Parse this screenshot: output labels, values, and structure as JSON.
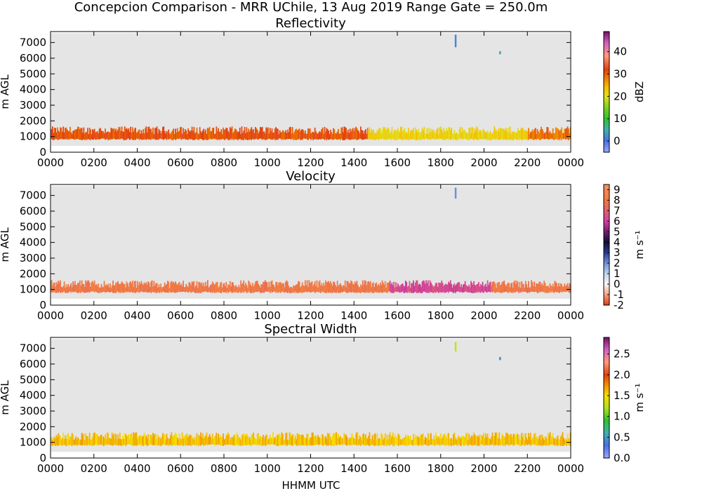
{
  "figure": {
    "suptitle": "Concepcion Comparison - MRR UChile, 13 Aug 2019 Range Gate = 250.0m",
    "xlabel": "HHMM UTC"
  },
  "colors": {
    "plot_background": "#e5e5e5",
    "reflectivity_band_main": "#e04a0a",
    "reflectivity_band_late": "#f2e600",
    "velocity_band": "#f28a3c",
    "velocity_band_late": "#e0508c",
    "width_band_top": "#f5e000",
    "width_band_bottom": "#e06010",
    "accent_blue": "#4a6fe0",
    "accent_green": "#22aa22"
  },
  "chart_data": [
    {
      "type": "heatmap",
      "title": "Reflectivity",
      "xlabel": "",
      "ylabel": "m AGL",
      "xlim": [
        0,
        24
      ],
      "ylim": [
        0,
        7700
      ],
      "x_tick_labels": [
        "0000",
        "0200",
        "0400",
        "0600",
        "0800",
        "1000",
        "1200",
        "1400",
        "1600",
        "1800",
        "2000",
        "2200",
        "0000"
      ],
      "y_tick_labels": [
        "0",
        "1000",
        "2000",
        "3000",
        "4000",
        "5000",
        "6000",
        "7000"
      ],
      "colorbar": {
        "label": "dBZ",
        "range": [
          -5,
          49
        ],
        "ticks": [
          "0",
          "10",
          "20",
          "30",
          "40"
        ],
        "tick_values": [
          0,
          10,
          20,
          30,
          40
        ],
        "stops": [
          {
            "v": -5,
            "c": "#9aa8ff"
          },
          {
            "v": 0,
            "c": "#4a6fe0"
          },
          {
            "v": 5,
            "c": "#40b0b0"
          },
          {
            "v": 10,
            "c": "#30c030"
          },
          {
            "v": 15,
            "c": "#80d020"
          },
          {
            "v": 20,
            "c": "#e0e020"
          },
          {
            "v": 24,
            "c": "#f5c000"
          },
          {
            "v": 28,
            "c": "#f08000"
          },
          {
            "v": 32,
            "c": "#e04010"
          },
          {
            "v": 38,
            "c": "#ff9a7a"
          },
          {
            "v": 44,
            "c": "#d060c0"
          },
          {
            "v": 49,
            "c": "#701060"
          }
        ]
      },
      "precip_band": {
        "base_m": 1000,
        "top_m": 1400,
        "segments": [
          {
            "x_start": 0,
            "x_end": 14.6,
            "value": 31
          },
          {
            "x_start": 14.6,
            "x_end": 22.0,
            "value": 22
          },
          {
            "x_start": 22.0,
            "x_end": 24,
            "value": 29
          }
        ]
      },
      "features": [
        {
          "x_hour": 18.65,
          "y_top_m": 7500,
          "y_bottom_m": 6700,
          "value": 2
        },
        {
          "x_hour": 20.7,
          "y_top_m": 6450,
          "y_bottom_m": 6250,
          "value": 4
        }
      ]
    },
    {
      "type": "heatmap",
      "title": "Velocity",
      "xlabel": "",
      "ylabel": "m AGL",
      "xlim": [
        0,
        24
      ],
      "ylim": [
        0,
        7700
      ],
      "x_tick_labels": [
        "0000",
        "0200",
        "0400",
        "0600",
        "0800",
        "1000",
        "1200",
        "1400",
        "1600",
        "1800",
        "2000",
        "2200",
        "0000"
      ],
      "y_tick_labels": [
        "0",
        "1000",
        "2000",
        "3000",
        "4000",
        "5000",
        "6000",
        "7000"
      ],
      "colorbar": {
        "label": "m s⁻¹",
        "range": [
          -2,
          9.5
        ],
        "ticks": [
          "-2",
          "-1",
          "0",
          "1",
          "2",
          "3",
          "4",
          "5",
          "6",
          "7",
          "8",
          "9"
        ],
        "tick_values": [
          -2,
          -1,
          0,
          1,
          2,
          3,
          4,
          5,
          6,
          7,
          8,
          9
        ],
        "stops": [
          {
            "v": -2,
            "c": "#e03a10"
          },
          {
            "v": -1,
            "c": "#f5a080"
          },
          {
            "v": 0,
            "c": "#f8f8f8"
          },
          {
            "v": 1,
            "c": "#c0d4f0"
          },
          {
            "v": 2,
            "c": "#7090d0"
          },
          {
            "v": 3,
            "c": "#2a3a90"
          },
          {
            "v": 4,
            "c": "#101030"
          },
          {
            "v": 5,
            "c": "#702070"
          },
          {
            "v": 6,
            "c": "#d040a0"
          },
          {
            "v": 7,
            "c": "#e06070"
          },
          {
            "v": 8,
            "c": "#f07a40"
          },
          {
            "v": 9.5,
            "c": "#f59060"
          }
        ]
      },
      "precip_band": {
        "base_m": 1000,
        "top_m": 1350,
        "segments": [
          {
            "x_start": 0,
            "x_end": 15.6,
            "value": 8
          },
          {
            "x_start": 15.6,
            "x_end": 20.3,
            "value": 6.3
          },
          {
            "x_start": 20.3,
            "x_end": 24,
            "value": 8
          }
        ]
      },
      "features": [
        {
          "x_hour": 18.65,
          "y_top_m": 7500,
          "y_bottom_m": 6800,
          "value": 2
        }
      ]
    },
    {
      "type": "heatmap",
      "title": "Spectral Width",
      "xlabel": "HHMM UTC",
      "ylabel": "m AGL",
      "xlim": [
        0,
        24
      ],
      "ylim": [
        0,
        7700
      ],
      "x_tick_labels": [
        "0000",
        "0200",
        "0400",
        "0600",
        "0800",
        "1000",
        "1200",
        "1400",
        "1600",
        "1800",
        "2000",
        "2200",
        "0000"
      ],
      "y_tick_labels": [
        "0",
        "1000",
        "2000",
        "3000",
        "4000",
        "5000",
        "6000",
        "7000"
      ],
      "colorbar": {
        "label": "m s⁻¹",
        "range": [
          0,
          2.9
        ],
        "ticks": [
          "0.0",
          "0.5",
          "1.0",
          "1.5",
          "2.0",
          "2.5"
        ],
        "tick_values": [
          0,
          0.5,
          1.0,
          1.5,
          2.0,
          2.5
        ],
        "stops": [
          {
            "v": 0,
            "c": "#9aa8ff"
          },
          {
            "v": 0.3,
            "c": "#4a6fe0"
          },
          {
            "v": 0.6,
            "c": "#40b0b0"
          },
          {
            "v": 0.9,
            "c": "#30c030"
          },
          {
            "v": 1.2,
            "c": "#b0e020"
          },
          {
            "v": 1.5,
            "c": "#f5e000"
          },
          {
            "v": 1.8,
            "c": "#f08000"
          },
          {
            "v": 2.0,
            "c": "#e04010"
          },
          {
            "v": 2.3,
            "c": "#ff9a7a"
          },
          {
            "v": 2.6,
            "c": "#d060c0"
          },
          {
            "v": 2.9,
            "c": "#701060"
          }
        ]
      },
      "precip_band": {
        "base_m": 1000,
        "top_m": 1400,
        "segments": [
          {
            "x_start": 0,
            "x_end": 24,
            "value": 1.6
          }
        ]
      },
      "features": [
        {
          "x_hour": 18.65,
          "y_top_m": 7400,
          "y_bottom_m": 6800,
          "value": 1.3
        },
        {
          "x_hour": 20.7,
          "y_top_m": 6450,
          "y_bottom_m": 6250,
          "value": 0.4
        }
      ]
    }
  ]
}
